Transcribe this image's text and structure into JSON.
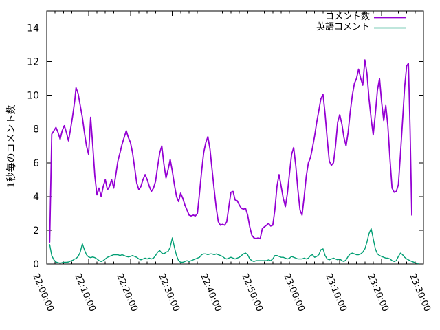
{
  "chart_data": {
    "type": "line",
    "title": "",
    "xlabel": "",
    "ylabel": "1秒毎のコメント数",
    "x_unit": "minutes after 22:00:00",
    "xlim_minutes": [
      0,
      90
    ],
    "ylim": [
      0,
      15
    ],
    "grid": false,
    "legend_position": "top-right-inside",
    "x_tick_labels": [
      "22:00:00",
      "22:10:00",
      "22:20:00",
      "22:30:00",
      "22:40:00",
      "22:50:00",
      "23:00:00",
      "23:10:00",
      "23:20:00",
      "23:30:00"
    ],
    "x_tick_minutes": [
      0,
      10,
      20,
      30,
      40,
      50,
      60,
      70,
      80,
      90
    ],
    "x_minor_tick_step_minutes": 2,
    "y_ticks": [
      0,
      2,
      4,
      6,
      8,
      10,
      12,
      14
    ],
    "axis_color": "#000000",
    "background_color": "#ffffff",
    "series": [
      {
        "name": "コメント数",
        "color": "#9400d3",
        "line_width": 1.8,
        "x": [
          0.7,
          1.2,
          1.7,
          2.2,
          2.7,
          3.2,
          3.7,
          4.2,
          4.7,
          5.2,
          5.7,
          6.2,
          6.7,
          7.0,
          7.5,
          8.0,
          8.5,
          9.0,
          9.5,
          10.0,
          10.5,
          11.0,
          11.5,
          12.0,
          12.5,
          13.0,
          13.5,
          14.0,
          14.5,
          15.0,
          15.5,
          16.0,
          16.5,
          17.0,
          17.5,
          18.0,
          18.5,
          19.0,
          19.5,
          20.0,
          20.5,
          21.0,
          21.5,
          22.0,
          22.5,
          23.0,
          23.5,
          24.0,
          24.5,
          25.0,
          25.5,
          26.0,
          26.5,
          27.0,
          27.5,
          28.0,
          28.5,
          29.0,
          29.5,
          30.0,
          30.5,
          31.0,
          31.5,
          32.0,
          32.5,
          33.0,
          33.5,
          34.0,
          34.5,
          35.0,
          35.5,
          36.0,
          36.5,
          37.0,
          37.5,
          38.0,
          38.5,
          39.0,
          39.5,
          40.0,
          40.5,
          41.0,
          41.5,
          42.0,
          42.5,
          43.0,
          43.5,
          44.0,
          44.5,
          45.0,
          45.5,
          46.0,
          46.5,
          47.0,
          47.5,
          48.0,
          48.5,
          49.0,
          49.5,
          50.0,
          50.5,
          51.0,
          51.5,
          52.0,
          52.5,
          53.0,
          53.5,
          54.0,
          54.5,
          55.0,
          55.5,
          56.0,
          56.5,
          57.0,
          57.5,
          58.0,
          58.5,
          59.0,
          59.5,
          60.0,
          60.5,
          61.0,
          61.5,
          62.0,
          62.5,
          63.0,
          63.5,
          64.0,
          64.5,
          65.0,
          65.5,
          66.0,
          66.5,
          67.0,
          67.5,
          68.0,
          68.5,
          69.0,
          69.5,
          70.0,
          70.5,
          71.0,
          71.5,
          72.0,
          72.5,
          73.0,
          73.5,
          74.0,
          74.5,
          75.0,
          75.5,
          76.0,
          76.5,
          77.0,
          77.5,
          78.0,
          78.5,
          79.0,
          79.5,
          80.0,
          80.5,
          81.0,
          81.5,
          82.0,
          82.5,
          83.0,
          83.5,
          84.0,
          84.5,
          85.0,
          85.5,
          86.0,
          86.4,
          86.8,
          87.2
        ],
        "y": [
          1.3,
          7.7,
          7.9,
          8.1,
          7.8,
          7.4,
          7.9,
          8.2,
          7.8,
          7.3,
          8.0,
          8.8,
          9.7,
          10.45,
          10.1,
          9.4,
          8.7,
          7.8,
          7.0,
          6.5,
          8.7,
          7.0,
          5.2,
          4.1,
          4.5,
          4.0,
          4.6,
          5.0,
          4.4,
          4.6,
          5.0,
          4.5,
          5.3,
          6.1,
          6.6,
          7.1,
          7.5,
          7.9,
          7.5,
          7.2,
          6.6,
          5.7,
          4.8,
          4.4,
          4.6,
          5.0,
          5.3,
          5.0,
          4.6,
          4.3,
          4.5,
          4.9,
          5.8,
          6.6,
          7.0,
          5.9,
          5.1,
          5.6,
          6.2,
          5.5,
          4.7,
          4.0,
          3.7,
          4.2,
          3.9,
          3.5,
          3.2,
          2.9,
          2.85,
          2.9,
          2.85,
          3.0,
          4.2,
          5.5,
          6.6,
          7.2,
          7.55,
          6.8,
          5.6,
          4.4,
          3.3,
          2.5,
          2.3,
          2.35,
          2.3,
          2.5,
          3.4,
          4.25,
          4.3,
          3.8,
          3.75,
          3.5,
          3.3,
          3.25,
          3.3,
          2.9,
          2.2,
          1.7,
          1.55,
          1.5,
          1.55,
          1.5,
          2.1,
          2.2,
          2.3,
          2.4,
          2.25,
          2.3,
          3.2,
          4.6,
          5.3,
          4.6,
          3.9,
          3.4,
          4.2,
          5.4,
          6.5,
          6.9,
          5.8,
          4.4,
          3.2,
          2.9,
          4.0,
          5.2,
          6.0,
          6.3,
          6.9,
          7.6,
          8.4,
          9.1,
          9.8,
          10.05,
          8.9,
          7.4,
          6.1,
          5.85,
          6.0,
          7.0,
          8.4,
          8.85,
          8.3,
          7.5,
          7.0,
          7.8,
          9.0,
          10.0,
          10.7,
          11.0,
          11.55,
          11.0,
          10.6,
          12.1,
          11.3,
          9.8,
          8.6,
          7.65,
          8.9,
          10.3,
          11.0,
          9.6,
          8.5,
          9.4,
          8.2,
          6.2,
          4.5,
          4.25,
          4.3,
          4.7,
          6.5,
          8.5,
          10.5,
          11.75,
          11.9,
          8.0,
          2.9
        ]
      },
      {
        "name": "英語コメント",
        "color": "#009e73",
        "line_width": 1.4,
        "x": [
          0.7,
          1.2,
          1.7,
          2.2,
          2.7,
          3.2,
          3.7,
          4.2,
          4.7,
          5.2,
          5.7,
          6.2,
          6.7,
          7.0,
          7.5,
          8.0,
          8.5,
          9.0,
          9.5,
          10.0,
          10.5,
          11.0,
          11.5,
          12.0,
          12.5,
          13.0,
          13.5,
          14.0,
          14.5,
          15.0,
          15.5,
          16.0,
          16.5,
          17.0,
          17.5,
          18.0,
          18.5,
          19.0,
          19.5,
          20.0,
          20.5,
          21.0,
          21.5,
          22.0,
          22.5,
          23.0,
          23.5,
          24.0,
          24.5,
          25.0,
          25.5,
          26.0,
          26.5,
          27.0,
          27.5,
          28.0,
          28.5,
          29.0,
          29.5,
          30.0,
          30.5,
          31.0,
          31.5,
          32.0,
          32.5,
          33.0,
          33.5,
          34.0,
          34.5,
          35.0,
          35.5,
          36.0,
          36.5,
          37.0,
          37.5,
          38.0,
          38.5,
          39.0,
          39.5,
          40.0,
          40.5,
          41.0,
          41.5,
          42.0,
          42.5,
          43.0,
          43.5,
          44.0,
          44.5,
          45.0,
          45.5,
          46.0,
          46.5,
          47.0,
          47.5,
          48.0,
          48.5,
          49.0,
          49.5,
          50.0,
          50.5,
          51.0,
          51.5,
          52.0,
          52.5,
          53.0,
          53.5,
          54.0,
          54.5,
          55.0,
          55.5,
          56.0,
          56.5,
          57.0,
          57.5,
          58.0,
          58.5,
          59.0,
          59.5,
          60.0,
          60.5,
          61.0,
          61.5,
          62.0,
          62.5,
          63.0,
          63.5,
          64.0,
          64.5,
          65.0,
          65.5,
          66.0,
          66.5,
          67.0,
          67.5,
          68.0,
          68.5,
          69.0,
          69.5,
          70.0,
          70.5,
          71.0,
          71.5,
          72.0,
          72.5,
          73.0,
          73.5,
          74.0,
          74.5,
          75.0,
          75.5,
          76.0,
          76.5,
          77.0,
          77.5,
          78.0,
          78.5,
          79.0,
          79.5,
          80.0,
          80.5,
          81.0,
          81.5,
          82.0,
          82.5,
          83.0,
          83.5,
          84.0,
          84.5,
          85.0,
          85.5,
          86.0,
          86.4,
          86.8,
          87.2,
          87.6,
          88.0,
          88.4,
          88.7
        ],
        "y": [
          1.15,
          0.5,
          0.25,
          0.12,
          0.08,
          0.05,
          0.08,
          0.1,
          0.1,
          0.12,
          0.18,
          0.22,
          0.3,
          0.32,
          0.45,
          0.7,
          1.2,
          0.85,
          0.55,
          0.42,
          0.38,
          0.42,
          0.38,
          0.3,
          0.2,
          0.15,
          0.2,
          0.3,
          0.4,
          0.45,
          0.5,
          0.55,
          0.55,
          0.55,
          0.5,
          0.55,
          0.5,
          0.45,
          0.42,
          0.45,
          0.5,
          0.45,
          0.4,
          0.3,
          0.25,
          0.3,
          0.35,
          0.3,
          0.35,
          0.3,
          0.35,
          0.5,
          0.7,
          0.8,
          0.65,
          0.6,
          0.7,
          0.75,
          1.0,
          1.55,
          1.0,
          0.5,
          0.2,
          0.1,
          0.1,
          0.15,
          0.2,
          0.15,
          0.2,
          0.25,
          0.3,
          0.35,
          0.4,
          0.55,
          0.6,
          0.6,
          0.55,
          0.6,
          0.6,
          0.55,
          0.6,
          0.55,
          0.5,
          0.45,
          0.35,
          0.3,
          0.35,
          0.4,
          0.35,
          0.3,
          0.35,
          0.4,
          0.5,
          0.6,
          0.65,
          0.55,
          0.3,
          0.2,
          0.15,
          0.2,
          0.2,
          0.2,
          0.2,
          0.2,
          0.2,
          0.25,
          0.2,
          0.3,
          0.5,
          0.5,
          0.45,
          0.4,
          0.4,
          0.35,
          0.3,
          0.35,
          0.45,
          0.4,
          0.35,
          0.3,
          0.3,
          0.3,
          0.35,
          0.3,
          0.35,
          0.5,
          0.55,
          0.4,
          0.45,
          0.55,
          0.85,
          0.9,
          0.5,
          0.3,
          0.25,
          0.3,
          0.35,
          0.3,
          0.25,
          0.3,
          0.2,
          0.15,
          0.25,
          0.45,
          0.6,
          0.65,
          0.6,
          0.55,
          0.55,
          0.6,
          0.7,
          0.9,
          1.3,
          1.8,
          2.1,
          1.5,
          0.9,
          0.6,
          0.5,
          0.45,
          0.4,
          0.35,
          0.35,
          0.3,
          0.2,
          0.15,
          0.2,
          0.45,
          0.65,
          0.55,
          0.4,
          0.3,
          0.25,
          0.2,
          0.15,
          0.12,
          0.08,
          0.04,
          0.02
        ]
      }
    ]
  }
}
